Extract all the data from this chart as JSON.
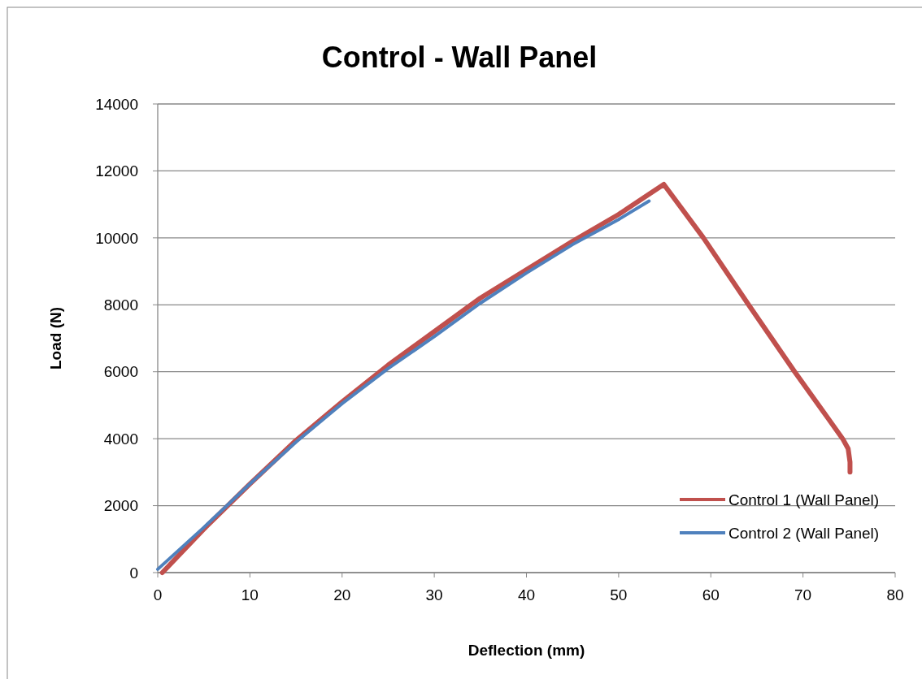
{
  "chart_data": {
    "type": "line",
    "title": "Control - Wall Panel",
    "xlabel": "Deflection (mm)",
    "ylabel": "Load (N)",
    "xlim": [
      0,
      80
    ],
    "xticks": [
      0,
      10,
      20,
      30,
      40,
      50,
      60,
      70,
      80
    ],
    "ylim": [
      0,
      14000
    ],
    "yticks": [
      0,
      2000,
      4000,
      6000,
      8000,
      10000,
      12000,
      14000
    ],
    "grid": "y",
    "legend": "bottom right",
    "marker": "none",
    "line_style": "solid",
    "series": [
      {
        "name": "Control 1 (Wall Panel)",
        "color": "#c0504d",
        "x": [
          0.5,
          5,
          10,
          15,
          20,
          25,
          30,
          35,
          40,
          45,
          50,
          54.9,
          59.2,
          64.1,
          69.1,
          74.3,
          74.9,
          75.1,
          75.1
        ],
        "values": [
          0,
          1300,
          2650,
          3950,
          5100,
          6200,
          7200,
          8200,
          9050,
          9900,
          10700,
          11600,
          10000,
          8000,
          6000,
          4000,
          3700,
          3300,
          3000
        ]
      },
      {
        "name": "Control 2 (Wall Panel)",
        "color": "#4f81bd",
        "x": [
          0,
          5,
          10,
          15,
          20,
          25,
          30,
          35,
          40,
          45,
          50,
          53.3
        ],
        "values": [
          100,
          1350,
          2650,
          3900,
          5050,
          6100,
          7050,
          8050,
          8950,
          9800,
          10550,
          11100
        ]
      }
    ]
  }
}
